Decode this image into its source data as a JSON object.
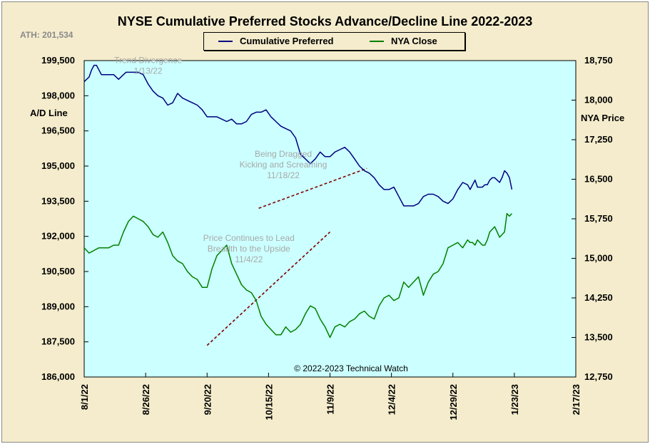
{
  "chart_data": {
    "type": "line",
    "title": "NYSE Cumulative  Preferred Stocks Advance/Decline  Line 2022-2023",
    "ath_label": "ATH: 201,534",
    "left_axis_label": "A/D Line",
    "right_axis_label": "NYA Price",
    "copyright": "© 2022-2023  Technical  Watch",
    "x_ticks": [
      "8/1/22",
      "8/26/22",
      "9/20/22",
      "10/15/22",
      "11/9/22",
      "12/4/22",
      "12/29/22",
      "1/23/23",
      "2/17/23"
    ],
    "x_range": [
      0,
      200
    ],
    "left_ticks": [
      "199,500",
      "198,000",
      "196,500",
      "195,000",
      "193,500",
      "192,000",
      "190,500",
      "189,000",
      "187,500",
      "186,000"
    ],
    "left_range": [
      186000,
      199500
    ],
    "right_ticks": [
      "18,750",
      "18,000",
      "17,250",
      "16,500",
      "15,750",
      "15,000",
      "14,250",
      "13,500",
      "12,750"
    ],
    "right_range": [
      12750,
      18750
    ],
    "series": [
      {
        "name": "Cumulative Preferred",
        "color": "#000080",
        "axis": "left",
        "x": [
          0,
          2,
          3,
          4,
          5,
          6,
          7,
          8,
          10,
          12,
          14,
          16,
          17,
          19,
          20,
          22,
          24,
          26,
          28,
          30,
          32,
          34,
          36,
          38,
          40,
          42,
          44,
          46,
          48,
          50,
          52,
          54,
          56,
          58,
          60,
          62,
          64,
          66,
          68,
          70,
          72,
          74,
          76,
          78,
          80,
          82,
          84,
          86,
          88,
          90,
          92,
          94,
          96,
          98,
          100,
          102,
          104,
          106,
          108,
          110,
          112,
          114,
          116,
          118,
          120,
          122,
          124,
          126,
          128,
          130,
          132,
          134,
          136,
          138,
          140,
          142,
          144,
          146,
          148,
          150,
          152,
          154,
          156,
          157,
          158,
          159,
          160,
          161,
          162,
          163,
          164,
          165,
          166,
          167,
          168,
          169,
          170,
          171,
          172,
          173,
          174
        ],
        "values": [
          198600,
          198800,
          199100,
          199300,
          199300,
          199100,
          198900,
          198900,
          198900,
          198900,
          198700,
          198900,
          199000,
          199000,
          199000,
          199000,
          198900,
          198500,
          198200,
          198000,
          197900,
          197600,
          197700,
          198100,
          197900,
          197800,
          197700,
          197600,
          197400,
          197100,
          197100,
          197100,
          197000,
          196900,
          197000,
          196800,
          196800,
          196900,
          197200,
          197300,
          197300,
          197400,
          197100,
          196900,
          196700,
          196600,
          196500,
          196200,
          195500,
          195300,
          195100,
          195300,
          195600,
          195400,
          195400,
          195600,
          195700,
          195800,
          195600,
          195300,
          195000,
          194800,
          194700,
          194500,
          194200,
          194000,
          194000,
          194100,
          193700,
          193300,
          193300,
          193300,
          193400,
          193700,
          193800,
          193800,
          193700,
          193500,
          193400,
          193600,
          194000,
          194300,
          194200,
          194000,
          194200,
          194400,
          194100,
          194100,
          194100,
          194200,
          194200,
          194400,
          194500,
          194500,
          194400,
          194300,
          194500,
          194800,
          194700,
          194500,
          194000
        ]
      },
      {
        "name": "NYA Close",
        "color": "#008000",
        "axis": "right",
        "x": [
          0,
          2,
          4,
          6,
          8,
          10,
          12,
          14,
          16,
          18,
          20,
          22,
          24,
          26,
          28,
          30,
          32,
          34,
          36,
          38,
          40,
          42,
          44,
          46,
          48,
          50,
          52,
          54,
          56,
          58,
          60,
          62,
          64,
          66,
          68,
          70,
          72,
          74,
          76,
          78,
          80,
          82,
          84,
          86,
          88,
          90,
          92,
          94,
          96,
          98,
          100,
          102,
          104,
          106,
          108,
          110,
          112,
          114,
          116,
          118,
          120,
          122,
          124,
          126,
          128,
          130,
          132,
          134,
          136,
          138,
          140,
          142,
          144,
          146,
          148,
          150,
          152,
          154,
          156,
          157,
          158,
          159,
          160,
          161,
          162,
          163,
          164,
          165,
          166,
          167,
          168,
          169,
          170,
          171,
          172,
          173,
          174
        ],
        "values": [
          15200,
          15100,
          15150,
          15200,
          15200,
          15200,
          15250,
          15250,
          15500,
          15700,
          15800,
          15750,
          15700,
          15600,
          15450,
          15400,
          15500,
          15300,
          15050,
          14950,
          14900,
          14750,
          14650,
          14600,
          14450,
          14450,
          14800,
          15050,
          15150,
          15250,
          14900,
          14700,
          14500,
          14400,
          14350,
          14200,
          13900,
          13750,
          13650,
          13550,
          13550,
          13700,
          13600,
          13650,
          13750,
          13950,
          14100,
          14050,
          13850,
          13700,
          13500,
          13700,
          13750,
          13700,
          13800,
          13850,
          13950,
          14000,
          13900,
          13850,
          14100,
          14250,
          14300,
          14200,
          14250,
          14550,
          14450,
          14550,
          14650,
          14300,
          14550,
          14700,
          14750,
          14900,
          15200,
          15250,
          15300,
          15200,
          15350,
          15300,
          15300,
          15250,
          15350,
          15300,
          15250,
          15250,
          15350,
          15500,
          15550,
          15600,
          15500,
          15400,
          15450,
          15500,
          15850,
          15800,
          15850
        ]
      }
    ],
    "trendlines": [
      {
        "axis": "left",
        "x": [
          71,
          115
        ],
        "y": [
          193200,
          194900
        ],
        "color": "#800000"
      },
      {
        "axis": "right",
        "x": [
          50,
          100
        ],
        "y": [
          13350,
          15500
        ],
        "color": "#800000"
      }
    ],
    "annotations": [
      {
        "lines": [
          "Trend  Divergence",
          "1/13/22"
        ],
        "x": 26,
        "y": 199400
      },
      {
        "lines": [
          "Being Dragged",
          "Kicking and Screaming",
          "11/18/22"
        ],
        "x": 81,
        "y": 195400
      },
      {
        "lines": [
          "Price Continues to Lead",
          "Breadth to the Upside",
          "11/4/22"
        ],
        "x": 67,
        "y": 191800
      }
    ]
  }
}
